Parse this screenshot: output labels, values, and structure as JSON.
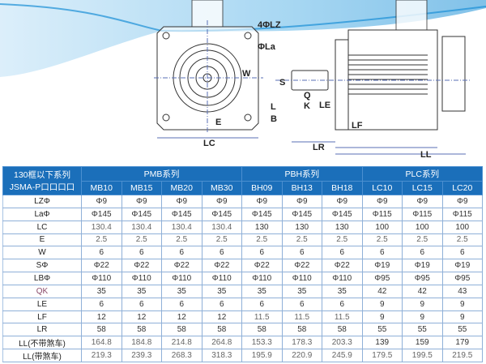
{
  "diagram": {
    "labels": {
      "lz": "4ΦLZ",
      "la": "ΦLa",
      "w": "W",
      "s": "S",
      "q": "Q",
      "k": "K",
      "le": "LE",
      "l": "L",
      "b": "B",
      "e": "E",
      "lf": "LF",
      "lc": "LC",
      "lr": "LR",
      "ll": "LL"
    },
    "colors": {
      "wave": "#1a8fd6",
      "line": "#333333",
      "dim": "#5a6fb5"
    }
  },
  "table": {
    "corner": [
      "130框以下系列",
      "JSMA-P口口口口"
    ],
    "groups": [
      "PMB系列",
      "PBH系列",
      "PLC系列"
    ],
    "models": [
      "MB10",
      "MB15",
      "MB20",
      "MB30",
      "BH09",
      "BH13",
      "BH18",
      "LC10",
      "LC15",
      "LC20"
    ],
    "rows": [
      {
        "name": "LZΦ",
        "values": [
          "Φ9",
          "Φ9",
          "Φ9",
          "Φ9",
          "Φ9",
          "Φ9",
          "Φ9",
          "Φ9",
          "Φ9",
          "Φ9"
        ]
      },
      {
        "name": "LaΦ",
        "values": [
          "Φ145",
          "Φ145",
          "Φ145",
          "Φ145",
          "Φ145",
          "Φ145",
          "Φ145",
          "Φ115",
          "Φ115",
          "Φ115"
        ]
      },
      {
        "name": "LC",
        "values": [
          "130.4",
          "130.4",
          "130.4",
          "130.4",
          "130",
          "130",
          "130",
          "100",
          "100",
          "100"
        ]
      },
      {
        "name": "E",
        "values": [
          "2.5",
          "2.5",
          "2.5",
          "2.5",
          "2.5",
          "2.5",
          "2.5",
          "2.5",
          "2.5",
          "2.5"
        ]
      },
      {
        "name": "W",
        "values": [
          "6",
          "6",
          "6",
          "6",
          "6",
          "6",
          "6",
          "6",
          "6",
          "6"
        ]
      },
      {
        "name": "SΦ",
        "values": [
          "Φ22",
          "Φ22",
          "Φ22",
          "Φ22",
          "Φ22",
          "Φ22",
          "Φ22",
          "Φ19",
          "Φ19",
          "Φ19"
        ]
      },
      {
        "name": "LBΦ",
        "values": [
          "Φ110",
          "Φ110",
          "Φ110",
          "Φ110",
          "Φ110",
          "Φ110",
          "Φ110",
          "Φ95",
          "Φ95",
          "Φ95"
        ]
      },
      {
        "name": "QK",
        "values": [
          "35",
          "35",
          "35",
          "35",
          "35",
          "35",
          "35",
          "42",
          "42",
          "43"
        ]
      },
      {
        "name": "LE",
        "values": [
          "6",
          "6",
          "6",
          "6",
          "6",
          "6",
          "6",
          "9",
          "9",
          "9"
        ]
      },
      {
        "name": "LF",
        "values": [
          "12",
          "12",
          "12",
          "12",
          "11.5",
          "11.5",
          "11.5",
          "9",
          "9",
          "9"
        ]
      },
      {
        "name": "LR",
        "values": [
          "58",
          "58",
          "58",
          "58",
          "58",
          "58",
          "58",
          "55",
          "55",
          "55"
        ]
      },
      {
        "name": "LL(不带煞车)",
        "values": [
          "164.8",
          "184.8",
          "214.8",
          "264.8",
          "153.3",
          "178.3",
          "203.3",
          "139",
          "159",
          "179"
        ]
      },
      {
        "name": "LL(带煞车)",
        "values": [
          "219.3",
          "239.3",
          "268.3",
          "318.3",
          "195.9",
          "220.9",
          "245.9",
          "179.5",
          "199.5",
          "219.5"
        ]
      }
    ]
  }
}
